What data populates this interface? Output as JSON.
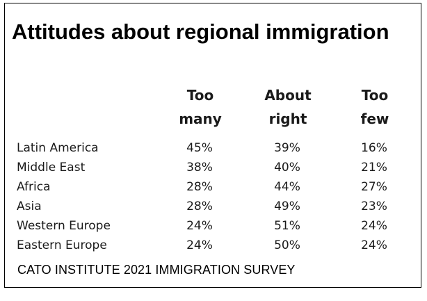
{
  "chart_data": {
    "type": "table",
    "title": "Attitudes about regional immigration",
    "columns": [
      {
        "line1": "Too",
        "line2": "many"
      },
      {
        "line1": "About",
        "line2": "right"
      },
      {
        "line1": "Too",
        "line2": "few"
      }
    ],
    "rows": [
      {
        "label": "Latin America",
        "values": [
          "45%",
          "39%",
          "16%"
        ]
      },
      {
        "label": "Middle East",
        "values": [
          "38%",
          "40%",
          "21%"
        ]
      },
      {
        "label": "Africa",
        "values": [
          "28%",
          "44%",
          "27%"
        ]
      },
      {
        "label": "Asia",
        "values": [
          "28%",
          "49%",
          "23%"
        ]
      },
      {
        "label": "Western Europe",
        "values": [
          "24%",
          "51%",
          "24%"
        ]
      },
      {
        "label": "Eastern Europe",
        "values": [
          "24%",
          "50%",
          "24%"
        ]
      }
    ],
    "source": "CATO INSTITUTE 2021 IMMIGRATION SURVEY"
  }
}
